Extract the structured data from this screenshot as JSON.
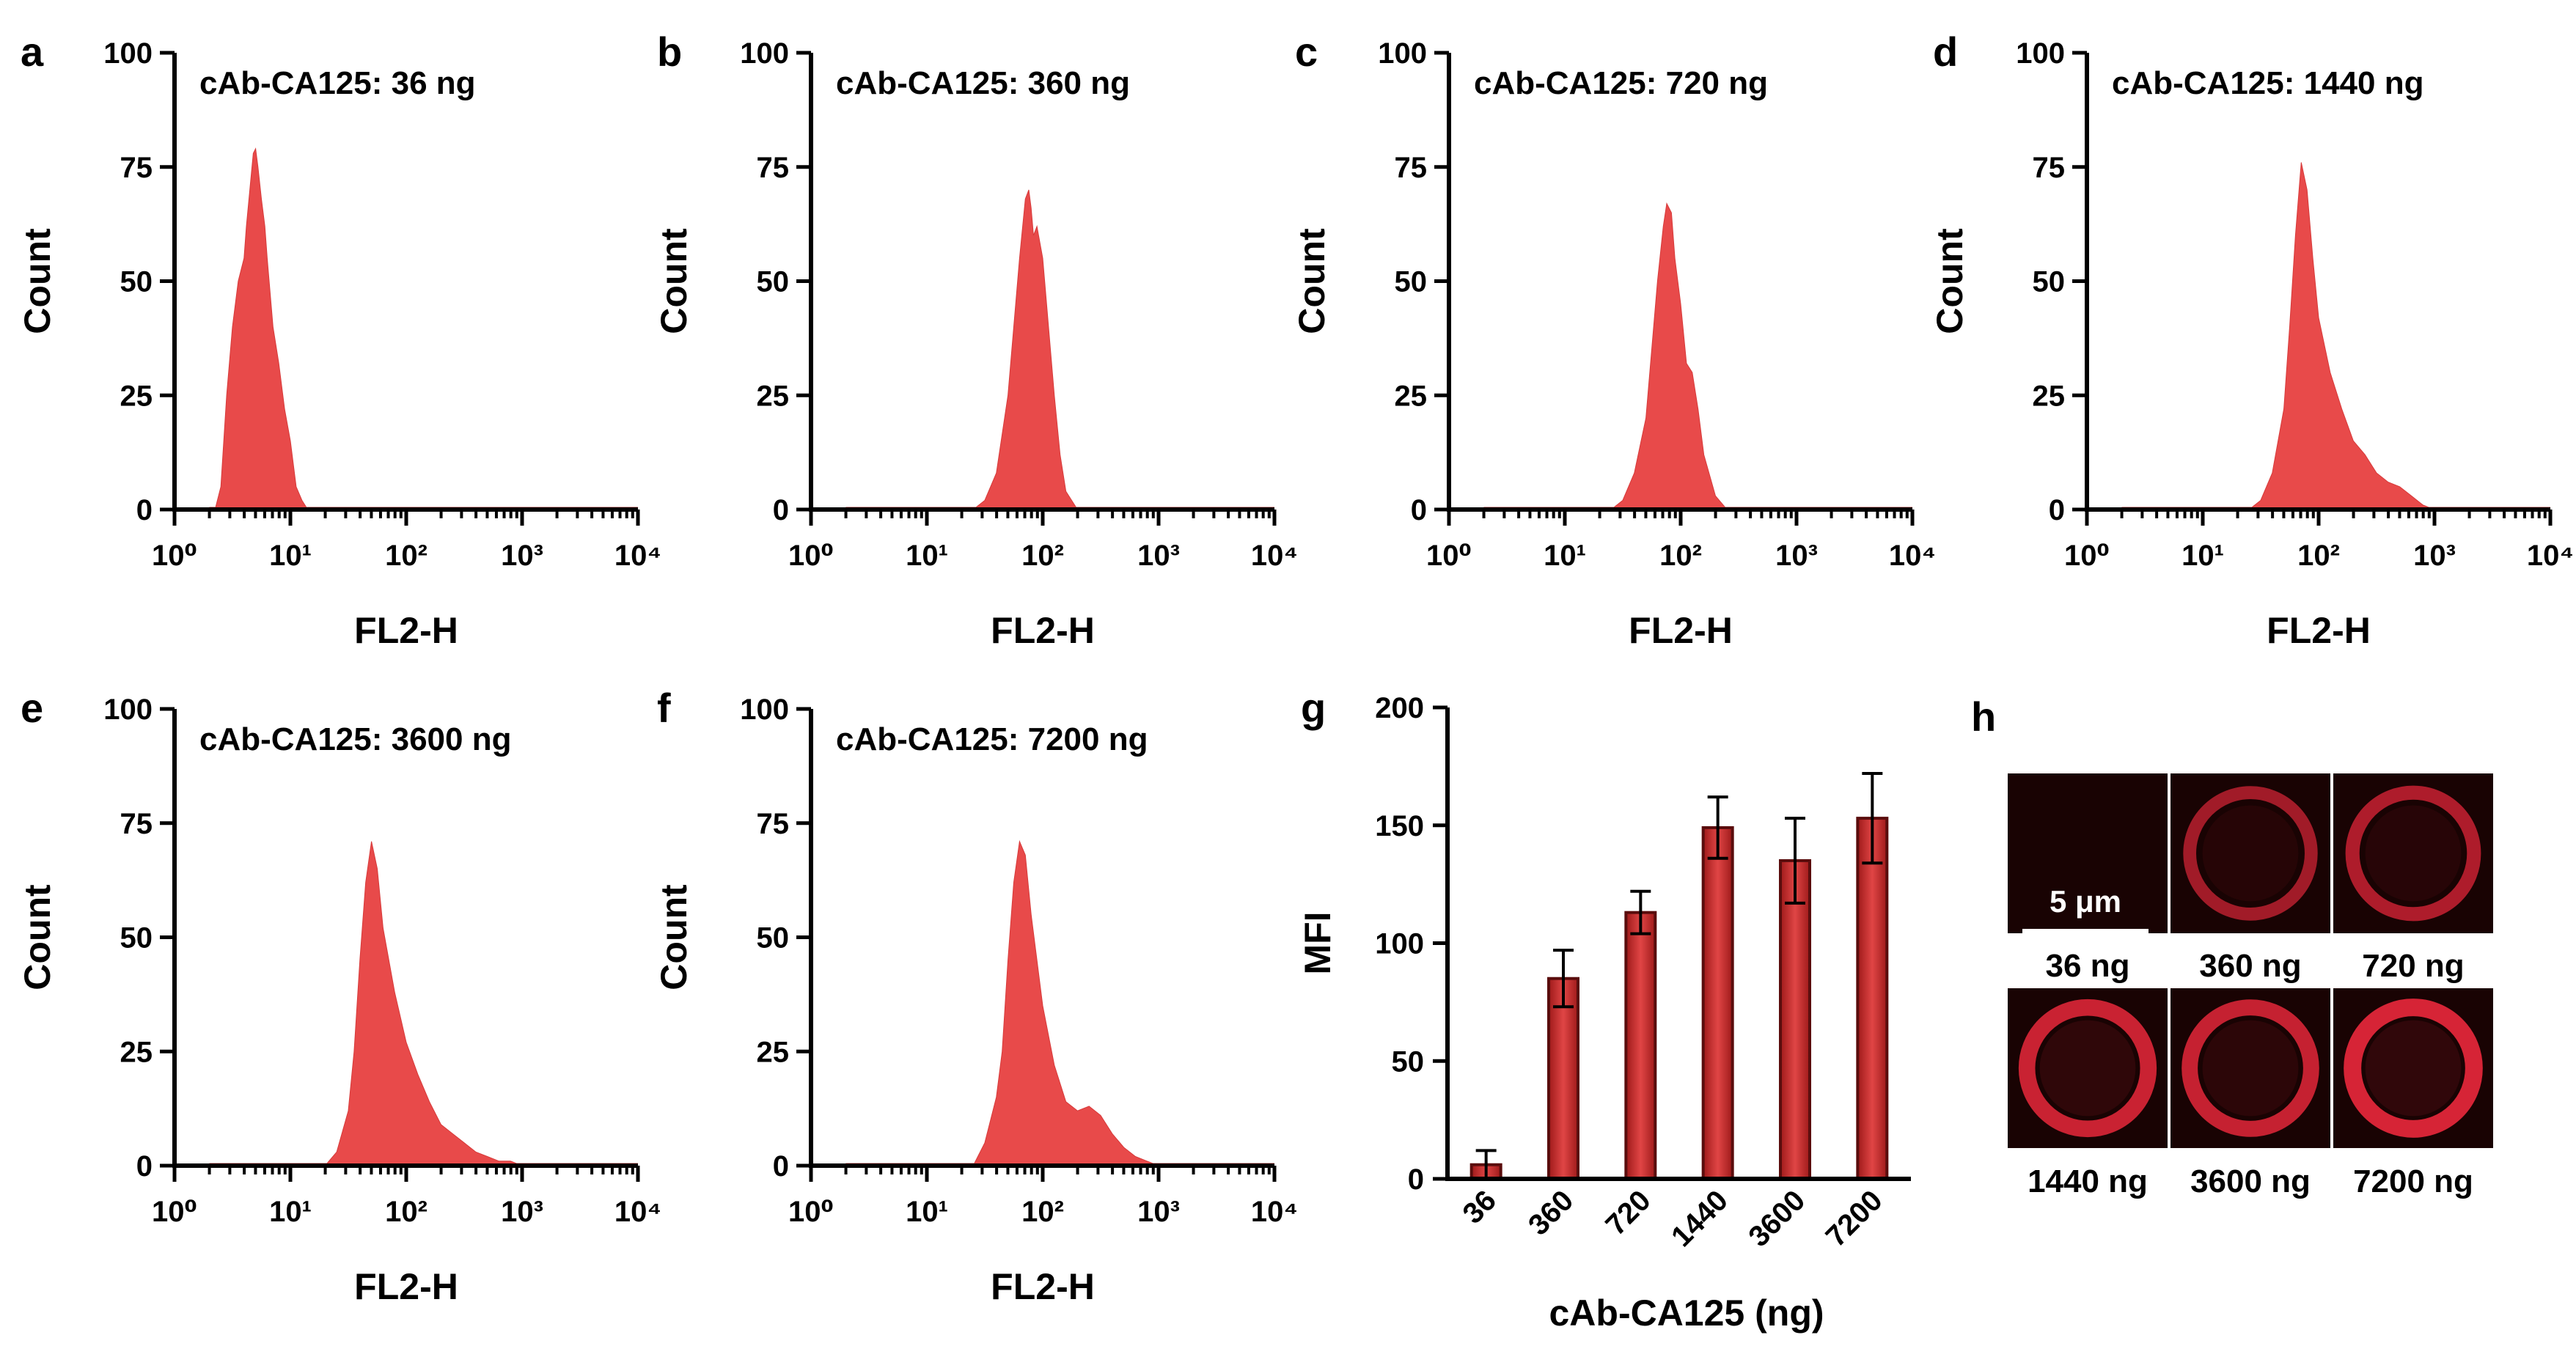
{
  "chart_data": [
    {
      "panel": "a",
      "type": "area",
      "title": "cAb-CA125: 36 ng",
      "xlabel": "FL2-H",
      "ylabel": "Count",
      "xscale": "log",
      "xlim_exponents": [
        0,
        4
      ],
      "xtick_labels": [
        "10⁰",
        "10¹",
        "10²",
        "10³",
        "10⁴"
      ],
      "ylim": [
        0,
        100
      ],
      "ytick_labels": [
        "0",
        "25",
        "50",
        "75",
        "100"
      ],
      "color": "#e84a4a",
      "log10_x": [
        0.3,
        0.35,
        0.4,
        0.45,
        0.5,
        0.55,
        0.6,
        0.62,
        0.65,
        0.68,
        0.7,
        0.72,
        0.75,
        0.78,
        0.8,
        0.85,
        0.9,
        0.95,
        1.0,
        1.05,
        1.1,
        1.15,
        1.2,
        1.25,
        1.3,
        4.0
      ],
      "counts": [
        0,
        0,
        5,
        25,
        40,
        50,
        55,
        62,
        70,
        78,
        79,
        75,
        68,
        62,
        55,
        40,
        32,
        22,
        15,
        5,
        2,
        0,
        0,
        0,
        0,
        0
      ]
    },
    {
      "panel": "b",
      "type": "area",
      "title": "cAb-CA125: 360 ng",
      "xlabel": "FL2-H",
      "ylabel": "Count",
      "xscale": "log",
      "xlim_exponents": [
        0,
        4
      ],
      "xtick_labels": [
        "10⁰",
        "10¹",
        "10²",
        "10³",
        "10⁴"
      ],
      "ylim": [
        0,
        100
      ],
      "ytick_labels": [
        "0",
        "25",
        "50",
        "75",
        "100"
      ],
      "color": "#e84a4a",
      "log10_x": [
        1.4,
        1.5,
        1.6,
        1.7,
        1.75,
        1.8,
        1.85,
        1.88,
        1.9,
        1.92,
        1.95,
        2.0,
        2.05,
        2.1,
        2.15,
        2.2,
        2.3
      ],
      "counts": [
        0,
        2,
        8,
        25,
        40,
        55,
        68,
        70,
        66,
        60,
        62,
        55,
        40,
        25,
        12,
        4,
        0
      ]
    },
    {
      "panel": "c",
      "type": "area",
      "title": "cAb-CA125: 720 ng",
      "xlabel": "FL2-H",
      "ylabel": "Count",
      "xscale": "log",
      "xlim_exponents": [
        0,
        4
      ],
      "xtick_labels": [
        "10⁰",
        "10¹",
        "10²",
        "10³",
        "10⁴"
      ],
      "ylim": [
        0,
        100
      ],
      "ytick_labels": [
        "0",
        "25",
        "50",
        "75",
        "100"
      ],
      "color": "#e84a4a",
      "log10_x": [
        1.4,
        1.5,
        1.6,
        1.7,
        1.75,
        1.8,
        1.85,
        1.88,
        1.92,
        1.95,
        2.0,
        2.05,
        2.1,
        2.15,
        2.2,
        2.3,
        2.4
      ],
      "counts": [
        0,
        2,
        8,
        20,
        35,
        50,
        62,
        67,
        65,
        55,
        45,
        32,
        30,
        22,
        12,
        3,
        0
      ]
    },
    {
      "panel": "d",
      "type": "area",
      "title": "cAb-CA125: 1440 ng",
      "xlabel": "FL2-H",
      "ylabel": "Count",
      "xscale": "log",
      "xlim_exponents": [
        0,
        4
      ],
      "xtick_labels": [
        "10⁰",
        "10¹",
        "10²",
        "10³",
        "10⁴"
      ],
      "ylim": [
        0,
        100
      ],
      "ytick_labels": [
        "0",
        "25",
        "50",
        "75",
        "100"
      ],
      "color": "#e84a4a",
      "log10_x": [
        1.4,
        1.5,
        1.6,
        1.7,
        1.75,
        1.8,
        1.85,
        1.9,
        1.95,
        2.0,
        2.1,
        2.2,
        2.3,
        2.4,
        2.5,
        2.6,
        2.7,
        2.8,
        2.9,
        3.0,
        3.1
      ],
      "counts": [
        0,
        2,
        8,
        22,
        40,
        60,
        76,
        70,
        55,
        42,
        30,
        22,
        15,
        12,
        8,
        6,
        5,
        3,
        1,
        0,
        0
      ]
    },
    {
      "panel": "e",
      "type": "area",
      "title": "cAb-CA125: 3600 ng",
      "xlabel": "FL2-H",
      "ylabel": "Count",
      "xscale": "log",
      "xlim_exponents": [
        0,
        4
      ],
      "xtick_labels": [
        "10⁰",
        "10¹",
        "10²",
        "10³",
        "10⁴"
      ],
      "ylim": [
        0,
        100
      ],
      "ytick_labels": [
        "0",
        "25",
        "50",
        "75",
        "100"
      ],
      "color": "#e84a4a",
      "log10_x": [
        1.3,
        1.4,
        1.5,
        1.55,
        1.6,
        1.65,
        1.7,
        1.75,
        1.8,
        1.9,
        2.0,
        2.1,
        2.2,
        2.3,
        2.4,
        2.5,
        2.6,
        2.7,
        2.8,
        2.9,
        3.0,
        3.1
      ],
      "counts": [
        0,
        3,
        12,
        25,
        45,
        62,
        71,
        65,
        52,
        38,
        27,
        20,
        14,
        9,
        7,
        5,
        3,
        2,
        1,
        1,
        0,
        0
      ]
    },
    {
      "panel": "f",
      "type": "area",
      "title": "cAb-CA125: 7200 ng",
      "xlabel": "FL2-H",
      "ylabel": "Count",
      "xscale": "log",
      "xlim_exponents": [
        0,
        4
      ],
      "xtick_labels": [
        "10⁰",
        "10¹",
        "10²",
        "10³",
        "10⁴"
      ],
      "ylim": [
        0,
        100
      ],
      "ytick_labels": [
        "0",
        "25",
        "50",
        "75",
        "100"
      ],
      "color": "#e84a4a",
      "log10_x": [
        1.4,
        1.5,
        1.6,
        1.65,
        1.7,
        1.75,
        1.8,
        1.85,
        1.9,
        2.0,
        2.1,
        2.2,
        2.3,
        2.4,
        2.5,
        2.6,
        2.7,
        2.8,
        2.9,
        3.0,
        3.1
      ],
      "counts": [
        0,
        5,
        15,
        25,
        45,
        62,
        71,
        68,
        55,
        35,
        22,
        14,
        12,
        13,
        11,
        7,
        4,
        2,
        1,
        0,
        0
      ]
    },
    {
      "panel": "g",
      "type": "bar",
      "title": "",
      "xlabel": "cAb-CA125 (ng)",
      "ylabel": "MFI",
      "categories": [
        "36",
        "360",
        "720",
        "1440",
        "3600",
        "7200"
      ],
      "values": [
        6,
        85,
        113,
        149,
        135,
        153
      ],
      "errors": [
        6,
        12,
        9,
        13,
        18,
        19
      ],
      "ylim": [
        0,
        200
      ],
      "ytick_labels": [
        "0",
        "50",
        "100",
        "150",
        "200"
      ],
      "color": "#d23030"
    }
  ],
  "micrographs": {
    "panel": "h",
    "scale_bar": "5 μm",
    "labels": [
      "36 ng",
      "360 ng",
      "720 ng",
      "1440 ng",
      "3600 ng",
      "7200 ng"
    ],
    "ring_intensity": [
      0.05,
      0.55,
      0.65,
      0.9,
      0.85,
      1.0
    ]
  }
}
